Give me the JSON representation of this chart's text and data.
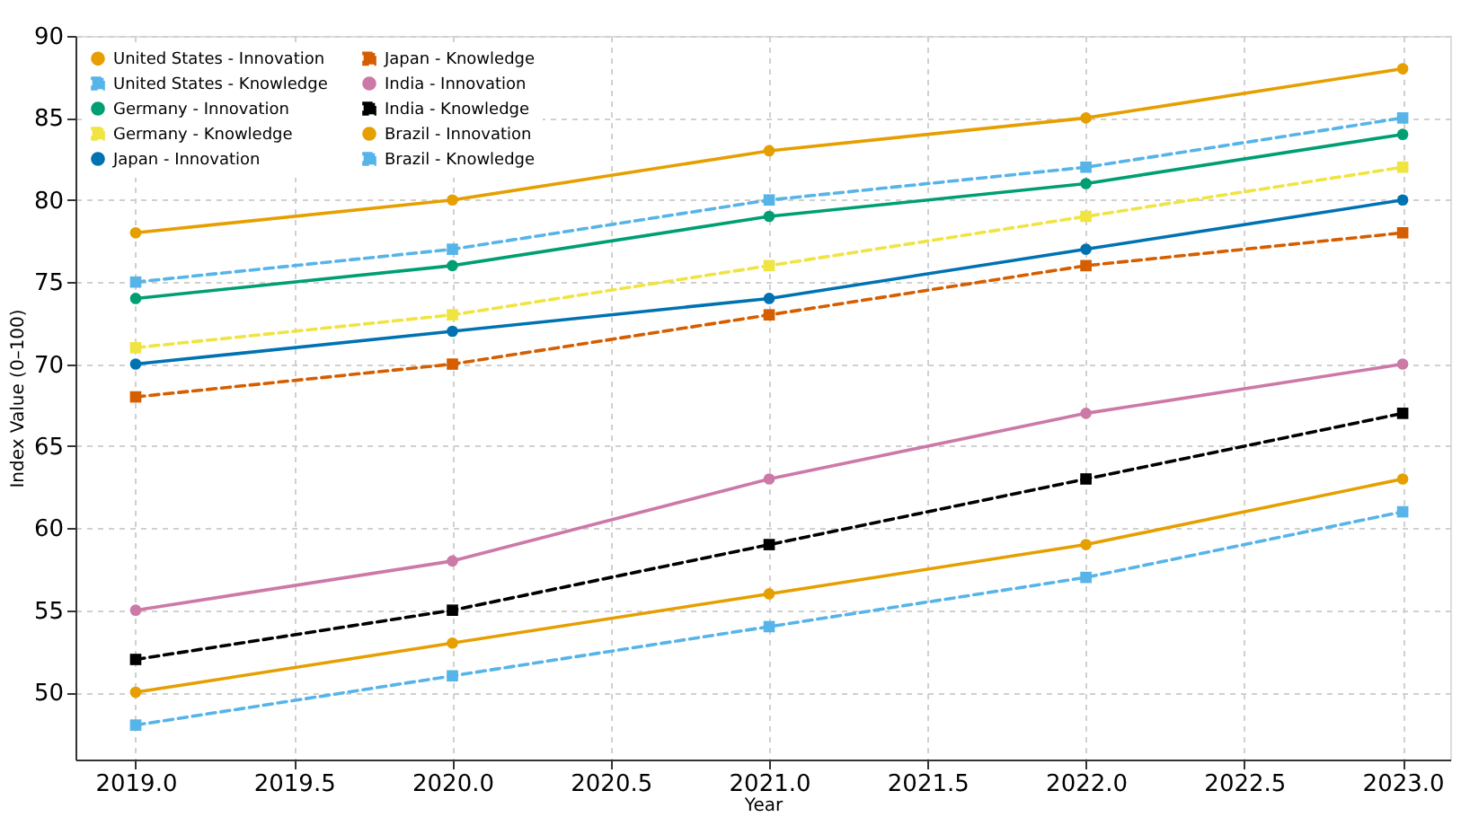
{
  "chart_data": {
    "type": "line",
    "xlabel": "Year",
    "ylabel": "Index Value (0–100)",
    "x": [
      2019,
      2020,
      2021,
      2022,
      2023
    ],
    "xlim": [
      2018.81,
      2023.15
    ],
    "xticks": [
      {
        "value": 2019,
        "label": "2019.0"
      },
      {
        "value": 2019.5,
        "label": "2019.5"
      },
      {
        "value": 2020,
        "label": "2020.0"
      },
      {
        "value": 2020.5,
        "label": "2020.5"
      },
      {
        "value": 2021,
        "label": "2021.0"
      },
      {
        "value": 2021.5,
        "label": "2021.5"
      },
      {
        "value": 2022,
        "label": "2022.0"
      },
      {
        "value": 2022.5,
        "label": "2022.5"
      },
      {
        "value": 2023,
        "label": "2023.0"
      }
    ],
    "ylim": [
      45.9,
      90
    ],
    "yticks": [
      50,
      55,
      60,
      65,
      70,
      75,
      80,
      85,
      90
    ],
    "grid": true,
    "legend": "top left",
    "series": [
      {
        "name": "United States - Innovation",
        "color": "#e69f00",
        "marker": "circle",
        "line_style": "solid",
        "values": [
          78,
          80,
          83,
          85,
          88
        ]
      },
      {
        "name": "United States - Knowledge",
        "color": "#56b4e9",
        "marker": "square",
        "line_style": "dashed",
        "values": [
          75,
          77,
          80,
          82,
          85
        ]
      },
      {
        "name": "Germany - Innovation",
        "color": "#009e73",
        "marker": "circle",
        "line_style": "solid",
        "values": [
          74,
          76,
          79,
          81,
          84
        ]
      },
      {
        "name": "Germany - Knowledge",
        "color": "#f0e442",
        "marker": "square",
        "line_style": "dashed",
        "values": [
          71,
          73,
          76,
          79,
          82
        ]
      },
      {
        "name": "Japan - Innovation",
        "color": "#0072b2",
        "marker": "circle",
        "line_style": "solid",
        "values": [
          70,
          72,
          74,
          77,
          80
        ]
      },
      {
        "name": "Japan - Knowledge",
        "color": "#d55e00",
        "marker": "square",
        "line_style": "dashed",
        "values": [
          68,
          70,
          73,
          76,
          78
        ]
      },
      {
        "name": "India - Innovation",
        "color": "#cc79a7",
        "marker": "circle",
        "line_style": "solid",
        "values": [
          55,
          58,
          63,
          67,
          70
        ]
      },
      {
        "name": "India - Knowledge",
        "color": "#000000",
        "marker": "square",
        "line_style": "dashed",
        "values": [
          52,
          55,
          59,
          63,
          67
        ]
      },
      {
        "name": "Brazil - Innovation",
        "color": "#e69f00",
        "marker": "circle",
        "line_style": "solid",
        "values": [
          50,
          53,
          56,
          59,
          63
        ]
      },
      {
        "name": "Brazil - Knowledge",
        "color": "#56b4e9",
        "marker": "square",
        "line_style": "dashed",
        "values": [
          48,
          51,
          54,
          57,
          61
        ]
      }
    ]
  }
}
